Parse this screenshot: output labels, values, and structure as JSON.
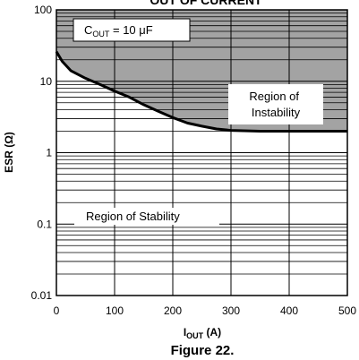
{
  "chart_data": {
    "type": "line",
    "title": "OUT OF CURRENT",
    "xlabel": {
      "main": "I",
      "sub": "OUT",
      "unit": " (A)"
    },
    "ylabel": "ESR (Ω)",
    "caption": "Figure 22.",
    "x_scale": "linear",
    "y_scale": "log",
    "xlim": [
      0,
      500
    ],
    "ylim": [
      0.01,
      100
    ],
    "x_ticks": [
      "0",
      "100",
      "200",
      "300",
      "400",
      "500"
    ],
    "y_ticks": [
      "0.01",
      "0.1",
      "1",
      "10",
      "100"
    ],
    "grid": "on",
    "series": [
      {
        "x": [
          0,
          10,
          25,
          50,
          75,
          100,
          125,
          150,
          175,
          200,
          225,
          250,
          275,
          300,
          350,
          400,
          450,
          500
        ],
        "y": [
          26,
          19,
          14,
          11,
          9,
          7.3,
          6,
          4.7,
          3.8,
          3.1,
          2.6,
          2.35,
          2.15,
          2.05,
          2.0,
          2.0,
          2.0,
          2.0
        ]
      }
    ],
    "shaded_region": {
      "bound": "above-curve",
      "fill": "#a3a3a3"
    },
    "annotations": {
      "cout": {
        "main": "C",
        "sub": "OUT",
        "rest": " = 10 μF"
      },
      "instability": [
        "Region of",
        "Instability"
      ],
      "stability": "Region of Stability"
    }
  }
}
